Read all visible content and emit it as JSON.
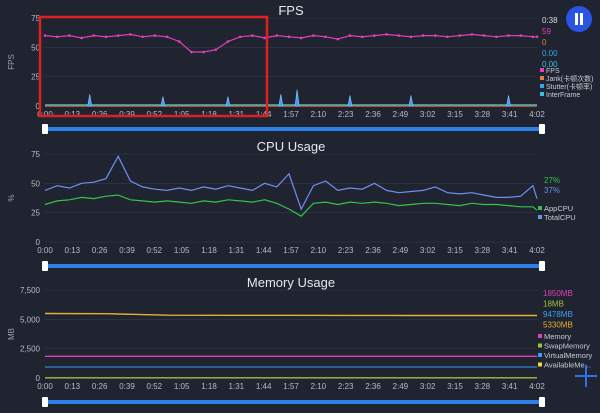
{
  "fps": {
    "title": "FPS",
    "ylabel": "FPS",
    "yticks": [
      "0",
      "25",
      "50",
      "75"
    ],
    "xticks": [
      "0:00",
      "0:13",
      "0:26",
      "0:39",
      "0:52",
      "1:05",
      "1:18",
      "1:31",
      "1:44",
      "1:57",
      "2:10",
      "2:23",
      "2:36",
      "2:49",
      "3:02",
      "3:15",
      "3:28",
      "3:41",
      "4:02"
    ],
    "readouts": [
      {
        "text": "0:38",
        "color": "#d8dbe3"
      },
      {
        "text": "59",
        "color": "#e040b8"
      },
      {
        "text": "0",
        "color": "#e0803a"
      },
      {
        "text": "0.00",
        "color": "#3a9ff5"
      },
      {
        "text": "0.00",
        "color": "#38c0e0"
      }
    ],
    "legend": [
      {
        "label": "FPS",
        "color": "#e040b8"
      },
      {
        "label": "Jank(卡顿次数)",
        "color": "#e0803a"
      },
      {
        "label": "Stutter(卡顿率)",
        "color": "#3a9ff5"
      },
      {
        "label": "InterFrame",
        "color": "#38c0e0"
      }
    ]
  },
  "cpu": {
    "title": "CPU Usage",
    "ylabel": "%",
    "yticks": [
      "0",
      "25",
      "50",
      "75"
    ],
    "xticks": [
      "0:00",
      "0:13",
      "0:26",
      "0:39",
      "0:52",
      "1:05",
      "1:18",
      "1:31",
      "1:44",
      "1:57",
      "2:10",
      "2:23",
      "2:36",
      "2:49",
      "3:02",
      "3:15",
      "3:28",
      "3:41",
      "4:02"
    ],
    "readouts": [
      {
        "text": "27%",
        "color": "#34c24a"
      },
      {
        "text": "37%",
        "color": "#6f8ef0"
      }
    ],
    "legend": [
      {
        "label": "AppCPU",
        "color": "#34c24a"
      },
      {
        "label": "TotalCPU",
        "color": "#6f8ef0"
      }
    ]
  },
  "memory": {
    "title": "Memory Usage",
    "ylabel": "MB",
    "yticks": [
      "0",
      "2,500",
      "5,000",
      "7,500"
    ],
    "xticks": [
      "0:00",
      "0:13",
      "0:26",
      "0:39",
      "0:52",
      "1:05",
      "1:18",
      "1:31",
      "1:44",
      "1:57",
      "2:10",
      "2:23",
      "2:36",
      "2:49",
      "3:02",
      "3:15",
      "3:28",
      "3:41",
      "4:02"
    ],
    "readouts": [
      {
        "text": "1850MB",
        "color": "#e040b8"
      },
      {
        "text": "18MB",
        "color": "#a0c040"
      },
      {
        "text": "9478MB",
        "color": "#3a9ff5"
      },
      {
        "text": "5330MB",
        "color": "#e8b030"
      }
    ],
    "legend": [
      {
        "label": "Memory",
        "color": "#e040b8"
      },
      {
        "label": "SwapMemory",
        "color": "#a0c040"
      },
      {
        "label": "VirtualMemory",
        "color": "#3a9ff5"
      },
      {
        "label": "AvailableMe...",
        "color": "#e8e030"
      }
    ]
  },
  "chart_data": [
    {
      "type": "line",
      "title": "FPS",
      "ylabel": "FPS",
      "ylim": [
        0,
        75
      ],
      "x": [
        0,
        6,
        12,
        18,
        24,
        30,
        36,
        42,
        48,
        54,
        60,
        66,
        72,
        78,
        84,
        90,
        96,
        102,
        108,
        114,
        120,
        126,
        132,
        138,
        144,
        150,
        156,
        162,
        168,
        174,
        180,
        186,
        192,
        198,
        204,
        210,
        216,
        222,
        228,
        234,
        240,
        242
      ],
      "series": [
        {
          "name": "FPS",
          "values": [
            60,
            59,
            60,
            58,
            60,
            59,
            60,
            61,
            59,
            60,
            59,
            55,
            46,
            46,
            48,
            55,
            59,
            60,
            58,
            60,
            59,
            58,
            60,
            59,
            57,
            60,
            59,
            60,
            61,
            60,
            59,
            60,
            60,
            59,
            60,
            61,
            60,
            59,
            60,
            60,
            59,
            59
          ]
        },
        {
          "name": "Jank(卡顿次数)",
          "values": [
            0,
            0,
            0,
            0,
            0,
            0,
            0,
            0,
            0,
            0,
            0,
            0,
            0,
            0,
            0,
            0,
            0,
            0,
            0,
            0,
            0,
            0,
            0,
            0,
            0,
            0,
            0,
            0,
            0,
            0,
            0,
            0,
            0,
            0,
            0,
            0,
            0,
            0,
            0,
            0,
            0,
            0
          ]
        },
        {
          "name": "InterFrame",
          "values": [
            1,
            1,
            1,
            1,
            1,
            1,
            1,
            1,
            1,
            1,
            1,
            1,
            1,
            1,
            1,
            1,
            1,
            1,
            1,
            1,
            1,
            1,
            1,
            1,
            1,
            1,
            1,
            1,
            1,
            1,
            1,
            1,
            1,
            1,
            1,
            1,
            1,
            1,
            1,
            1,
            1,
            1
          ]
        }
      ],
      "spikes": {
        "series": "Stutter(卡顿率)",
        "x": [
          22,
          58,
          90,
          116,
          124,
          150,
          180,
          228
        ],
        "values": [
          10,
          8,
          8,
          10,
          14,
          9,
          9,
          9
        ]
      }
    },
    {
      "type": "line",
      "title": "CPU Usage",
      "ylabel": "%",
      "ylim": [
        0,
        75
      ],
      "x": [
        0,
        6,
        12,
        18,
        24,
        30,
        36,
        42,
        48,
        54,
        60,
        66,
        72,
        78,
        84,
        90,
        96,
        102,
        108,
        114,
        120,
        126,
        132,
        138,
        144,
        150,
        156,
        162,
        168,
        174,
        180,
        186,
        192,
        198,
        204,
        210,
        216,
        222,
        228,
        234,
        240,
        242
      ],
      "series": [
        {
          "name": "AppCPU",
          "values": [
            32,
            35,
            36,
            38,
            37,
            39,
            40,
            36,
            35,
            34,
            35,
            34,
            33,
            35,
            34,
            36,
            35,
            34,
            36,
            33,
            28,
            22,
            33,
            34,
            32,
            34,
            33,
            34,
            33,
            31,
            32,
            33,
            33,
            32,
            31,
            33,
            32,
            32,
            31,
            30,
            30,
            27
          ]
        },
        {
          "name": "TotalCPU",
          "values": [
            44,
            48,
            46,
            50,
            51,
            54,
            73,
            52,
            47,
            45,
            44,
            46,
            44,
            47,
            45,
            48,
            46,
            44,
            50,
            47,
            58,
            28,
            48,
            52,
            44,
            46,
            45,
            50,
            44,
            42,
            43,
            44,
            47,
            42,
            41,
            42,
            40,
            38,
            38,
            39,
            48,
            37
          ]
        }
      ]
    },
    {
      "type": "line",
      "title": "Memory Usage",
      "ylabel": "MB",
      "ylim": [
        0,
        7500
      ],
      "x": [
        0,
        30,
        60,
        90,
        120,
        150,
        180,
        210,
        242
      ],
      "series": [
        {
          "name": "Memory",
          "values": [
            1850,
            1850,
            1850,
            1850,
            1850,
            1850,
            1850,
            1850,
            1850
          ]
        },
        {
          "name": "SwapMemory",
          "values": [
            18,
            18,
            18,
            18,
            18,
            18,
            18,
            18,
            18
          ]
        },
        {
          "name": "AvailableMe...",
          "values": [
            5500,
            5480,
            5350,
            5340,
            5340,
            5335,
            5330,
            5330,
            5330
          ]
        }
      ]
    }
  ]
}
